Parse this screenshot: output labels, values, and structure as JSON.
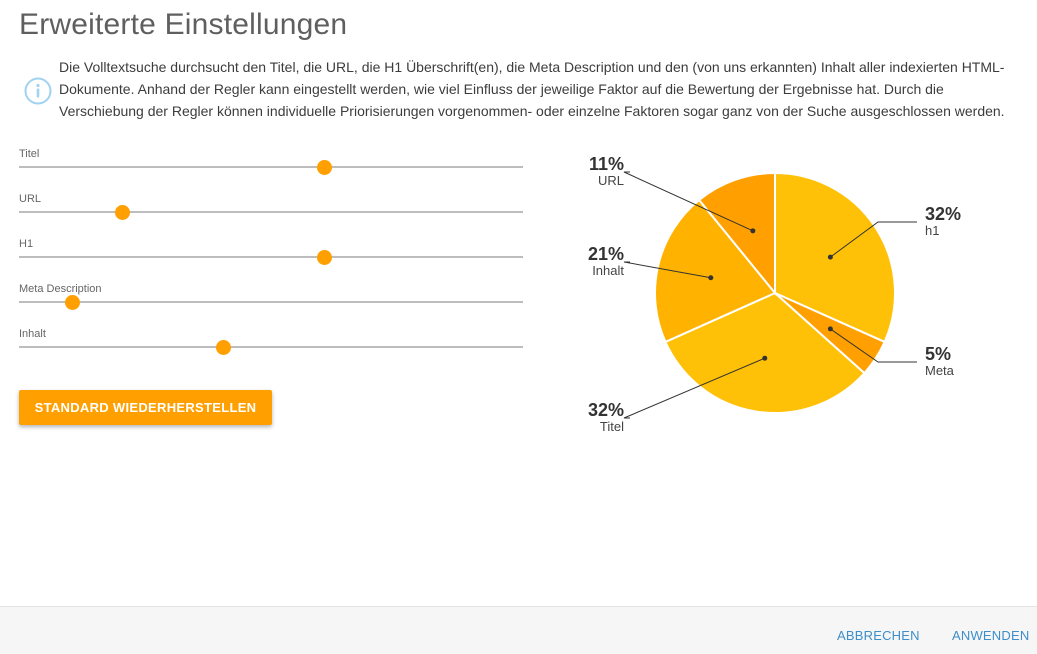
{
  "title": "Erweiterte Einstellungen",
  "info": {
    "icon": "info-icon",
    "text": "Die Volltextsuche durchsucht den Titel, die URL, die H1 Überschrift(en), die Meta Description und den (von uns erkannten) Inhalt aller indexierten HTML-Dokumente. Anhand der Regler kann eingestellt werden, wie viel Einfluss der jeweilige Faktor auf die Bewertung der Ergebnisse hat. Durch die Verschiebung der Regler können individuelle Priorisierungen vorgenommen- oder einzelne Faktoren sogar ganz von der Suche ausgeschlossen werden."
  },
  "sliders": [
    {
      "label": "Titel",
      "value": 0.605
    },
    {
      "label": "URL",
      "value": 0.205
    },
    {
      "label": "H1",
      "value": 0.605
    },
    {
      "label": "Meta Description",
      "value": 0.105
    },
    {
      "label": "Inhalt",
      "value": 0.405
    }
  ],
  "reset_button": "STANDARD WIEDERHERSTELLEN",
  "chart_data": {
    "type": "pie",
    "slices": [
      {
        "label": "h1",
        "percent": "32%",
        "value": 32,
        "color": "#ffc107"
      },
      {
        "label": "Meta",
        "percent": "5%",
        "value": 5,
        "color": "#ffa000"
      },
      {
        "label": "Titel",
        "percent": "32%",
        "value": 32,
        "color": "#ffc107"
      },
      {
        "label": "Inhalt",
        "percent": "21%",
        "value": 21,
        "color": "#ffb300"
      },
      {
        "label": "URL",
        "percent": "11%",
        "value": 11,
        "color": "#ffa000"
      }
    ]
  },
  "footer": {
    "cancel": "ABBRECHEN",
    "apply": "ANWENDEN"
  },
  "colors": {
    "accent": "#ffa000",
    "link": "#3d8ec9",
    "info_icon": "#9fd3ef"
  }
}
